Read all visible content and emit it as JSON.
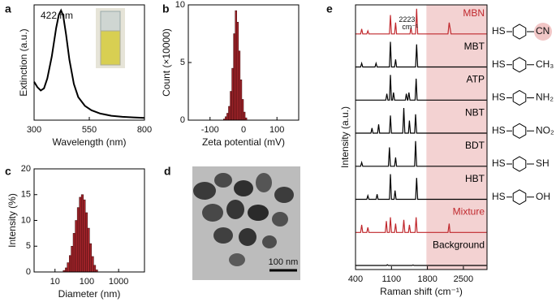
{
  "chart_data": [
    {
      "type": "line",
      "panel_label": "a",
      "x_label": "Wavelength (nm)",
      "y_label": "Extinction (a.u.)",
      "annotation": "422 nm",
      "xlim": [
        300,
        800
      ],
      "xticks": [
        300,
        550,
        800
      ],
      "ylim": [
        0,
        1.05
      ],
      "color": "#000000",
      "x": [
        300,
        315,
        330,
        345,
        360,
        380,
        400,
        412,
        422,
        432,
        445,
        460,
        480,
        500,
        530,
        560,
        600,
        650,
        700,
        750,
        800
      ],
      "values": [
        0.35,
        0.3,
        0.27,
        0.29,
        0.38,
        0.58,
        0.84,
        0.96,
        1.0,
        0.95,
        0.78,
        0.55,
        0.33,
        0.21,
        0.13,
        0.09,
        0.06,
        0.04,
        0.03,
        0.025,
        0.02
      ]
    },
    {
      "type": "histogram",
      "panel_label": "b",
      "x_label": "Zeta potential (mV)",
      "y_label": "Count (×10000)",
      "xlim": [
        -165,
        165
      ],
      "xticks": [
        -100,
        0,
        100
      ],
      "ylim": [
        0,
        10
      ],
      "yticks": [
        0,
        5,
        10
      ],
      "color": "#a3242a",
      "bins": [
        -60,
        -55,
        -50,
        -45,
        -40,
        -35,
        -30,
        -25,
        -20,
        -15,
        -10,
        -5,
        0,
        5,
        10
      ],
      "values": [
        0.1,
        0.3,
        0.6,
        1.2,
        2.5,
        4.5,
        7.5,
        9.5,
        8.5,
        6,
        3.5,
        1.8,
        0.7,
        0.2
      ]
    },
    {
      "type": "histogram",
      "panel_label": "c",
      "x_label": "Diameter (nm)",
      "y_label": "Intensity (%)",
      "xscale": "log",
      "xlim": [
        2.2,
        6500
      ],
      "xticks": [
        10,
        100,
        1000
      ],
      "ylim": [
        0,
        20
      ],
      "yticks": [
        0,
        5,
        10,
        15,
        20
      ],
      "color": "#a3242a",
      "bins": [
        18,
        21,
        24,
        28,
        32,
        37,
        43,
        50,
        58,
        67,
        78,
        90,
        105,
        122,
        141,
        164,
        190,
        220
      ],
      "values": [
        0.3,
        0.8,
        1.8,
        3.2,
        5,
        7.5,
        10,
        12.5,
        14.5,
        15,
        14,
        11.5,
        8.5,
        5.5,
        3,
        1.3,
        0.4
      ]
    },
    {
      "type": "line",
      "panel_label": "e",
      "x_label": "Raman shift (cm⁻¹)",
      "y_label": "Intensity (a.u.)",
      "xlim": [
        400,
        2960
      ],
      "xticks": [
        400,
        1100,
        1800,
        2500
      ],
      "ylim": [
        0,
        1
      ],
      "shaded_region": [
        1780,
        2960
      ],
      "shade_color": "#f3d2d2",
      "series": [
        {
          "name": "MBN",
          "color": "#c0282d",
          "annotation": "2223",
          "annotation_unit": "cm⁻¹",
          "x": [
            400,
            500,
            520,
            540,
            620,
            640,
            660,
            1060,
            1080,
            1100,
            1160,
            1180,
            1200,
            1460,
            1480,
            1500,
            1570,
            1590,
            1610,
            2200,
            2223,
            2260,
            2950
          ],
          "values": [
            0,
            0,
            0.2,
            0,
            0,
            0.12,
            0,
            0,
            0.75,
            0,
            0,
            0.45,
            0,
            0,
            0.25,
            0,
            0,
            1,
            0,
            0,
            0.45,
            0,
            0
          ]
        },
        {
          "name": "MBT",
          "color": "#000000",
          "x": [
            400,
            500,
            520,
            540,
            780,
            800,
            820,
            1060,
            1080,
            1100,
            1160,
            1180,
            1200,
            1570,
            1590,
            1610,
            2950
          ],
          "values": [
            0,
            0,
            0.15,
            0,
            0,
            0.15,
            0,
            0,
            1,
            0,
            0,
            0.3,
            0,
            0,
            0.9,
            0,
            0
          ]
        },
        {
          "name": "ATP",
          "color": "#000000",
          "x": [
            400,
            990,
            1010,
            1030,
            1060,
            1080,
            1100,
            1120,
            1140,
            1160,
            1370,
            1390,
            1410,
            1420,
            1440,
            1460,
            1560,
            1580,
            1600,
            2950
          ],
          "values": [
            0,
            0,
            0.25,
            0,
            0,
            1,
            0,
            0,
            0.3,
            0,
            0,
            0.25,
            0,
            0,
            0.3,
            0,
            0,
            0.85,
            0,
            0
          ]
        },
        {
          "name": "NBT",
          "color": "#000000",
          "x": [
            400,
            700,
            720,
            740,
            830,
            850,
            870,
            1060,
            1080,
            1100,
            1320,
            1340,
            1360,
            1430,
            1450,
            1470,
            1550,
            1570,
            1590,
            2950
          ],
          "values": [
            0,
            0,
            0.2,
            0,
            0,
            0.35,
            0,
            0,
            0.7,
            0,
            0,
            1,
            0,
            0,
            0.5,
            0,
            0,
            0.75,
            0,
            0
          ]
        },
        {
          "name": "BDT",
          "color": "#000000",
          "x": [
            400,
            500,
            520,
            540,
            1040,
            1060,
            1080,
            1160,
            1180,
            1200,
            1550,
            1570,
            1590,
            2950
          ],
          "values": [
            0,
            0,
            0.15,
            0,
            0,
            0.75,
            0,
            0,
            0.35,
            0,
            0,
            1,
            0,
            0
          ]
        },
        {
          "name": "HBT",
          "color": "#000000",
          "x": [
            400,
            620,
            640,
            660,
            800,
            820,
            840,
            1060,
            1080,
            1100,
            1150,
            1170,
            1190,
            1570,
            1590,
            1610,
            2950
          ],
          "values": [
            0,
            0,
            0.15,
            0,
            0,
            0.2,
            0,
            0,
            1,
            0,
            0,
            0.35,
            0,
            0,
            0.85,
            0,
            0
          ]
        },
        {
          "name": "Mixture",
          "color": "#c0282d",
          "x": [
            400,
            500,
            520,
            540,
            620,
            640,
            660,
            980,
            1000,
            1020,
            1060,
            1080,
            1100,
            1160,
            1180,
            1200,
            1320,
            1340,
            1360,
            1430,
            1450,
            1470,
            1560,
            1580,
            1600,
            2200,
            2223,
            2240,
            2950
          ],
          "values": [
            0,
            0,
            0.3,
            0,
            0,
            0.2,
            0,
            0,
            0.45,
            0,
            0,
            0.6,
            0,
            0,
            0.35,
            0,
            0,
            0.5,
            0,
            0,
            0.3,
            0,
            0,
            0.6,
            0,
            0,
            0.35,
            0,
            0
          ]
        },
        {
          "name": "Background",
          "color": "#000000",
          "x": [
            400,
            1000,
            1020,
            1040,
            1500,
            1520,
            1540,
            2950
          ],
          "values": [
            0,
            0,
            0.03,
            0,
            0,
            0.02,
            0,
            0
          ]
        }
      ]
    }
  ],
  "tem_image": {
    "panel_label": "d",
    "scale_bar": "100 nm"
  },
  "structures": [
    {
      "left": "HS",
      "right": "CN",
      "highlight": true
    },
    {
      "left": "HS",
      "right": "CH₃"
    },
    {
      "left": "HS",
      "right": "NH₂"
    },
    {
      "left": "HS",
      "right": "NO₂"
    },
    {
      "left": "HS",
      "right": "SH"
    },
    {
      "left": "HS",
      "right": "OH"
    }
  ]
}
